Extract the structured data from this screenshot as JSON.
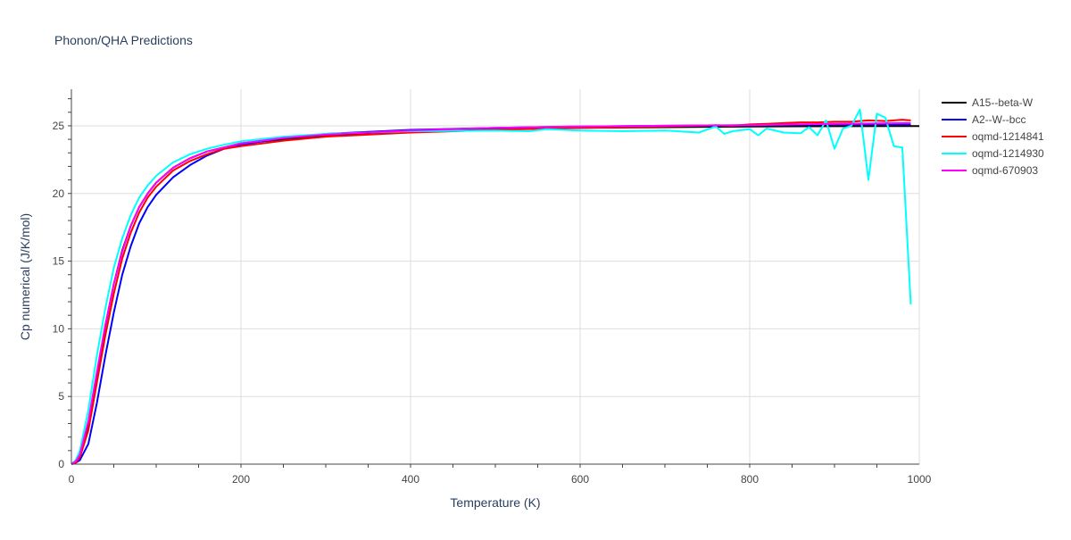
{
  "colors": {
    "tick_text": "#444444",
    "title_text": "#2a3f5f",
    "axis_title_text": "#2a3f5f",
    "grid": "#dddddd",
    "axis_line": "#444444"
  },
  "chart_data": {
    "type": "line",
    "title": "Phonon/QHA Predictions",
    "xlabel": "Temperature (K)",
    "ylabel": "Cp numerical (J/K/mol)",
    "xlim": [
      0,
      1000
    ],
    "ylim": [
      0,
      27.7
    ],
    "xticks": [
      0,
      200,
      400,
      600,
      800,
      1000
    ],
    "yticks": [
      0,
      5,
      10,
      15,
      20,
      25
    ],
    "grid": true,
    "legend_position": "right",
    "series": [
      {
        "name": "A15--beta-W",
        "color": "#000000",
        "x": [
          0,
          5,
          10,
          20,
          30,
          40,
          50,
          60,
          70,
          80,
          90,
          100,
          120,
          140,
          160,
          180,
          200,
          250,
          300,
          400,
          500,
          600,
          700,
          800,
          900,
          1000
        ],
        "y": [
          0,
          0.2,
          0.6,
          3.0,
          6.5,
          10.2,
          13.3,
          15.8,
          17.6,
          19.0,
          20.0,
          20.8,
          21.9,
          22.6,
          23.1,
          23.4,
          23.7,
          24.0,
          24.3,
          24.6,
          24.75,
          24.85,
          24.9,
          24.95,
          24.97,
          24.98
        ]
      },
      {
        "name": "A2--W--bcc",
        "color": "#0000ff",
        "x": [
          0,
          5,
          10,
          20,
          30,
          40,
          50,
          60,
          70,
          80,
          90,
          100,
          120,
          140,
          160,
          180,
          200,
          250,
          300,
          400,
          500,
          600,
          700,
          800,
          900,
          990
        ],
        "y": [
          0,
          0.1,
          0.3,
          1.5,
          4.5,
          8.0,
          11.2,
          14.0,
          16.1,
          17.8,
          19.0,
          19.9,
          21.2,
          22.1,
          22.8,
          23.3,
          23.6,
          24.1,
          24.4,
          24.7,
          24.85,
          24.95,
          25.0,
          25.05,
          25.1,
          25.1
        ]
      },
      {
        "name": "oqmd-1214841",
        "color": "#ff0000",
        "x": [
          0,
          5,
          10,
          20,
          30,
          40,
          50,
          60,
          70,
          80,
          90,
          100,
          120,
          140,
          160,
          180,
          200,
          250,
          300,
          400,
          500,
          600,
          700,
          760,
          780,
          800,
          820,
          840,
          860,
          880,
          900,
          920,
          940,
          960,
          980,
          990
        ],
        "y": [
          0,
          0.1,
          0.5,
          2.5,
          6.0,
          9.5,
          12.6,
          15.2,
          17.1,
          18.6,
          19.7,
          20.5,
          21.7,
          22.4,
          22.9,
          23.3,
          23.5,
          23.9,
          24.2,
          24.5,
          24.7,
          24.85,
          24.95,
          25.05,
          25.0,
          25.1,
          25.15,
          25.2,
          25.25,
          25.25,
          25.3,
          25.3,
          25.4,
          25.35,
          25.45,
          25.4
        ]
      },
      {
        "name": "oqmd-1214930",
        "color": "#00ffff",
        "x": [
          0,
          5,
          10,
          20,
          30,
          40,
          50,
          60,
          70,
          80,
          90,
          100,
          120,
          140,
          160,
          180,
          200,
          250,
          300,
          400,
          500,
          540,
          560,
          600,
          650,
          700,
          740,
          760,
          770,
          780,
          800,
          810,
          820,
          840,
          860,
          870,
          880,
          890,
          900,
          910,
          920,
          930,
          940,
          950,
          960,
          970,
          980,
          990
        ],
        "y": [
          0,
          0.3,
          1.0,
          4.0,
          8.0,
          11.5,
          14.5,
          16.7,
          18.4,
          19.7,
          20.6,
          21.3,
          22.3,
          22.9,
          23.3,
          23.6,
          23.85,
          24.2,
          24.4,
          24.6,
          24.65,
          24.6,
          24.75,
          24.65,
          24.6,
          24.65,
          24.5,
          24.95,
          24.4,
          24.6,
          24.75,
          24.3,
          24.8,
          24.5,
          24.45,
          24.9,
          24.3,
          25.4,
          23.3,
          24.8,
          25.0,
          26.2,
          21.0,
          25.9,
          25.6,
          23.5,
          23.4,
          11.8
        ]
      },
      {
        "name": "oqmd-670903",
        "color": "#ff00ff",
        "x": [
          0,
          5,
          10,
          20,
          30,
          40,
          50,
          60,
          70,
          80,
          90,
          100,
          120,
          140,
          160,
          180,
          200,
          250,
          300,
          400,
          500,
          600,
          700,
          800,
          900,
          990
        ],
        "y": [
          0,
          0.2,
          0.7,
          3.2,
          6.8,
          10.3,
          13.3,
          15.7,
          17.6,
          19.0,
          20.0,
          20.8,
          21.9,
          22.6,
          23.1,
          23.4,
          23.7,
          24.1,
          24.35,
          24.65,
          24.85,
          24.95,
          25.0,
          25.05,
          25.15,
          25.2
        ]
      }
    ]
  }
}
